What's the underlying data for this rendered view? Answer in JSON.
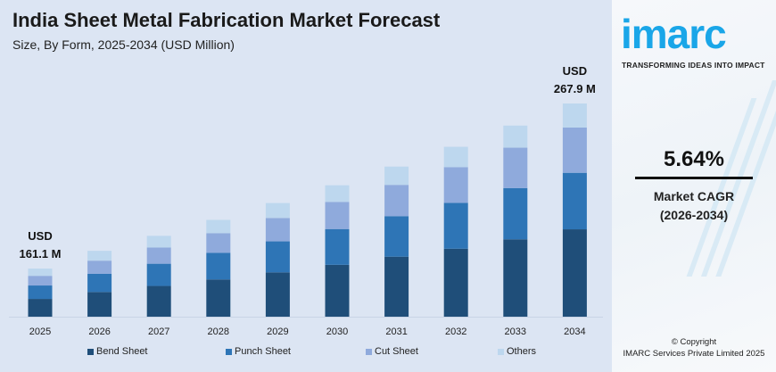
{
  "header": {
    "title": "India Sheet Metal Fabrication Market Forecast",
    "subtitle": "Size, By Form, 2025-2034 (USD Million)"
  },
  "chart_data": {
    "type": "bar",
    "stacked": true,
    "categories": [
      "2025",
      "2026",
      "2027",
      "2028",
      "2029",
      "2030",
      "2031",
      "2032",
      "2033",
      "2034"
    ],
    "series": [
      {
        "name": "Bend Sheet",
        "color": "#1f4e79",
        "values": [
          59.6,
          64.7,
          69.3,
          74.1,
          79.4,
          84.9,
          90.8,
          96.0,
          102.7,
          109.8
        ]
      },
      {
        "name": "Punch Sheet",
        "color": "#2e75b6",
        "values": [
          44.9,
          47.6,
          50.1,
          52.9,
          55.5,
          58.5,
          61.3,
          64.8,
          68.0,
          71.0
        ]
      },
      {
        "name": "Cut Sheet",
        "color": "#8faadc",
        "values": [
          32.4,
          34.5,
          36.5,
          39.0,
          41.8,
          44.4,
          47.3,
          50.4,
          53.6,
          56.9
        ]
      },
      {
        "name": "Others",
        "color": "#bdd7ee",
        "values": [
          24.2,
          25.8,
          26.4,
          26.6,
          26.8,
          27.2,
          27.7,
          28.7,
          29.3,
          30.2
        ]
      }
    ],
    "totals": [
      161.1,
      172.6,
      182.3,
      192.6,
      203.5,
      215.0,
      227.1,
      239.9,
      253.6,
      267.9
    ],
    "annotations": [
      {
        "category": "2025",
        "line1": "USD",
        "line2": "161.1 M"
      },
      {
        "category": "2034",
        "line1": "USD",
        "line2": "267.9 M"
      }
    ],
    "xlabel": "",
    "ylabel": "",
    "grid": false,
    "legend": "bottom"
  },
  "sidebar": {
    "logo": "imarc",
    "tagline": "TRANSFORMING IDEAS INTO IMPACT",
    "cagr_value": "5.64%",
    "cagr_label": "Market CAGR",
    "cagr_period": "(2026-2034)",
    "copyright": "© Copyright",
    "company": "IMARC Services Private Limited 2025",
    "brand_color": "#1aa6e8"
  }
}
